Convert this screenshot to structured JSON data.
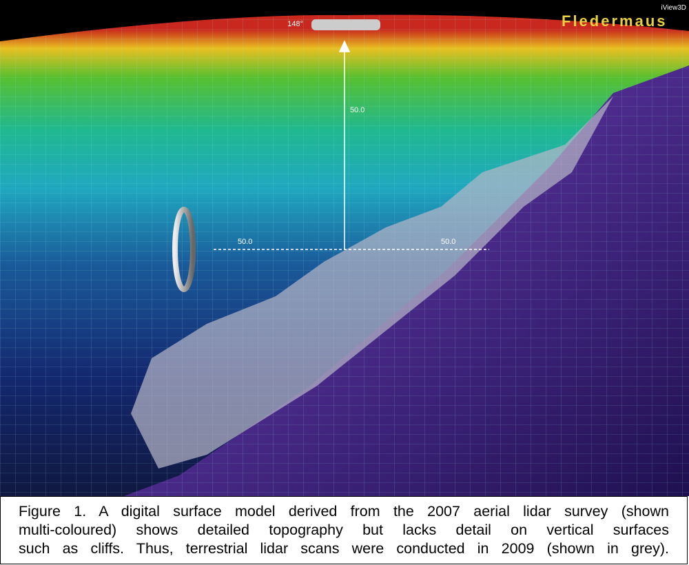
{
  "viewer": {
    "heading": "148°",
    "logo": "Fledermaus",
    "product": "iView3D",
    "axis_labels": [
      "50.0",
      "50.0",
      "50.0"
    ]
  },
  "caption": {
    "lines": [
      "Figure 1. A digital surface model derived from the 2007 aerial lidar survey (shown",
      "multi-coloured) shows detailed topography but lacks detail on vertical surfaces",
      "such as cliffs. Thus, terrestrial lidar scans were conducted in 2009 (shown in grey)."
    ]
  }
}
